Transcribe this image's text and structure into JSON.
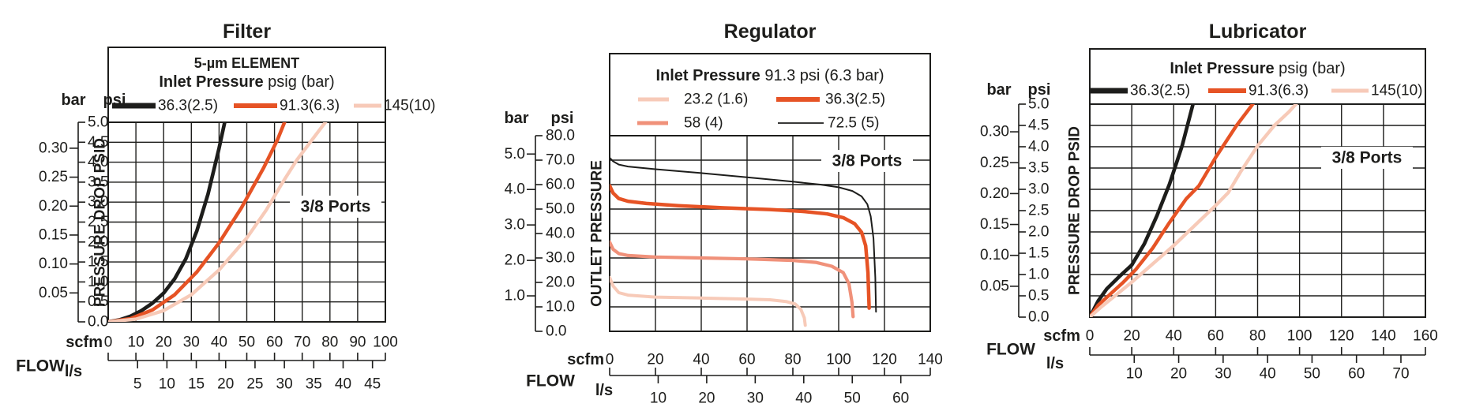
{
  "page": {
    "background": "#ffffff"
  },
  "colors": {
    "black": "#1d1d1b",
    "orange": "#e65325",
    "salmon": "#f0917a",
    "pink": "#f7cab8",
    "grid": "#1d1d1b",
    "text": "#1d1d1b"
  },
  "chart_data": [
    {
      "id": "filter",
      "type": "line",
      "title": "Filter",
      "ports_label": "3/8 Ports",
      "legend": {
        "lines": [
          [
            {
              "b": "5-µm ELEMENT",
              "r": ""
            }
          ],
          [
            {
              "b": "Inlet Pressure",
              "r": " psig (bar)"
            }
          ]
        ],
        "items": [
          {
            "label": "36.3(2.5)",
            "color": "black",
            "lw": 7
          },
          {
            "label": "91.3(6.3)",
            "color": "orange",
            "lw": 6
          },
          {
            "label": "145(10)",
            "color": "pink",
            "lw": 5
          }
        ]
      },
      "x_axis": {
        "label": "FLOW",
        "unit_top": "scfm",
        "unit_bottom": "l/s",
        "min": 0,
        "max": 100,
        "scfm_ticks": [
          0,
          10,
          20,
          30,
          40,
          50,
          60,
          70,
          80,
          90,
          100
        ],
        "ls_ticks": [
          5,
          10,
          15,
          20,
          25,
          30,
          35,
          40,
          45
        ],
        "ls_to_scfm": 2.1189,
        "grid": true
      },
      "y_axis": {
        "label": "PRESSURE DROP PSID",
        "unit_left": "bar",
        "unit_right": "psi",
        "min_psi": 0,
        "max_psi": 5,
        "psi_ticks": [
          "0.0",
          "0.5",
          "1.0",
          "1.5",
          "2.0",
          "2.5",
          "3.0",
          "3.5",
          "4.0",
          "4.5",
          "5.0"
        ],
        "bar_ticks": [
          "0.05",
          "0.10",
          "0.15",
          "0.20",
          "0.25",
          "0.30"
        ],
        "bar_to_psi": 14.5,
        "grid": true
      },
      "series": [
        {
          "name": "36.3(2.5)",
          "color": "black",
          "lw": 4.6,
          "points": [
            [
              0,
              0
            ],
            [
              4,
              0.05
            ],
            [
              8,
              0.14
            ],
            [
              12,
              0.28
            ],
            [
              16,
              0.47
            ],
            [
              20,
              0.72
            ],
            [
              24,
              1.08
            ],
            [
              28,
              1.58
            ],
            [
              32,
              2.28
            ],
            [
              36,
              3.2
            ],
            [
              40,
              4.35
            ],
            [
              42.5,
              5.15
            ]
          ]
        },
        {
          "name": "91.3(6.3)",
          "color": "orange",
          "lw": 4.5,
          "points": [
            [
              0,
              0
            ],
            [
              8,
              0.08
            ],
            [
              16,
              0.3
            ],
            [
              24,
              0.68
            ],
            [
              32,
              1.25
            ],
            [
              40,
              1.98
            ],
            [
              48,
              2.85
            ],
            [
              56,
              3.85
            ],
            [
              61,
              4.55
            ],
            [
              64.5,
              5.15
            ]
          ]
        },
        {
          "name": "145(10)",
          "color": "pink",
          "lw": 4.3,
          "points": [
            [
              0,
              0
            ],
            [
              10,
              0.07
            ],
            [
              20,
              0.28
            ],
            [
              30,
              0.68
            ],
            [
              40,
              1.3
            ],
            [
              50,
              2.1
            ],
            [
              57,
              2.8
            ],
            [
              63,
              3.5
            ],
            [
              68,
              4.05
            ],
            [
              74,
              4.6
            ],
            [
              80,
              5.15
            ]
          ]
        }
      ]
    },
    {
      "id": "regulator",
      "type": "line",
      "title": "Regulator",
      "ports_label": "3/8 Ports",
      "legend": {
        "lines": [
          [
            {
              "b": "Inlet Pressure",
              "r": " 91.3 psi (6.3 bar)"
            }
          ]
        ],
        "items": [
          {
            "label": "23.2 (1.6)",
            "color": "pink",
            "lw": 5
          },
          {
            "label": "36.3(2.5)",
            "color": "orange",
            "lw": 6
          },
          {
            "label": "58 (4)",
            "color": "salmon",
            "lw": 5
          },
          {
            "label": "72.5 (5)",
            "color": "black",
            "lw": 1.8
          }
        ]
      },
      "x_axis": {
        "label": "FLOW",
        "unit_top": "scfm",
        "unit_bottom": "l/s",
        "min": 0,
        "max": 140,
        "scfm_ticks": [
          0,
          20,
          40,
          60,
          80,
          100,
          120,
          140
        ],
        "ls_ticks": [
          10,
          20,
          30,
          40,
          50,
          60
        ],
        "ls_to_scfm": 2.1189,
        "grid": true
      },
      "y_axis": {
        "label": "OUTLET PRESSURE",
        "unit_left": "bar",
        "unit_right": "psi",
        "min_psi": 0,
        "max_psi": 80,
        "psi_ticks": [
          "0.0",
          "10.0",
          "20.0",
          "30.0",
          "40.0",
          "50.0",
          "60.0",
          "70.0",
          "80.0"
        ],
        "bar_ticks": [
          "1.0",
          "2.0",
          "3.0",
          "4.0",
          "5.0"
        ],
        "bar_to_psi": 14.5,
        "grid": true
      },
      "series": [
        {
          "name": "23.2 (1.6)",
          "color": "pink",
          "lw": 4,
          "points": [
            [
              0,
              22
            ],
            [
              1.5,
              18.5
            ],
            [
              4,
              15.8
            ],
            [
              8,
              14.8
            ],
            [
              20,
              14
            ],
            [
              40,
              13.6
            ],
            [
              60,
              13.2
            ],
            [
              70,
              12.9
            ],
            [
              77,
              12.2
            ],
            [
              81,
              11.2
            ],
            [
              83.5,
              9
            ],
            [
              85,
              5.5
            ],
            [
              85.4,
              2.5
            ]
          ]
        },
        {
          "name": "36.3(2.5)",
          "color": "orange",
          "lw": 4.5,
          "points": [
            [
              0,
              59.5
            ],
            [
              1.5,
              56.5
            ],
            [
              4,
              54.3
            ],
            [
              8,
              53.2
            ],
            [
              16,
              52.3
            ],
            [
              30,
              51.4
            ],
            [
              50,
              50.5
            ],
            [
              70,
              49.8
            ],
            [
              85,
              49
            ],
            [
              95,
              48
            ],
            [
              102,
              46.5
            ],
            [
              107,
              44
            ],
            [
              110,
              40.5
            ],
            [
              111.8,
              35
            ],
            [
              112.8,
              24
            ],
            [
              113.3,
              9.5
            ]
          ]
        },
        {
          "name": "58 (4)",
          "color": "salmon",
          "lw": 4.2,
          "points": [
            [
              0,
              36.5
            ],
            [
              1.5,
              33.5
            ],
            [
              4,
              31.8
            ],
            [
              8,
              31
            ],
            [
              20,
              30.4
            ],
            [
              40,
              30
            ],
            [
              60,
              29.6
            ],
            [
              80,
              29
            ],
            [
              90,
              28.2
            ],
            [
              97,
              26.6
            ],
            [
              102,
              24
            ],
            [
              104.5,
              19.5
            ],
            [
              105.8,
              12
            ],
            [
              106.3,
              6
            ]
          ]
        },
        {
          "name": "72.5 (5)",
          "color": "black",
          "lw": 2,
          "points": [
            [
              0,
              71
            ],
            [
              1.5,
              69.5
            ],
            [
              4,
              68.2
            ],
            [
              8,
              67.4
            ],
            [
              20,
              66.3
            ],
            [
              40,
              64.7
            ],
            [
              60,
              63
            ],
            [
              80,
              61.2
            ],
            [
              92,
              60
            ],
            [
              100,
              58.9
            ],
            [
              106,
              57.4
            ],
            [
              110,
              55.2
            ],
            [
              112.5,
              52
            ],
            [
              114,
              47
            ],
            [
              115.2,
              38
            ],
            [
              116,
              22
            ],
            [
              116.3,
              8
            ]
          ]
        }
      ]
    },
    {
      "id": "lubricator",
      "type": "line",
      "title": "Lubricator",
      "ports_label": "3/8 Ports",
      "legend": {
        "lines": [
          [
            {
              "b": "Inlet Pressure",
              "r": " psig (bar)"
            }
          ]
        ],
        "items": [
          {
            "label": "36.3(2.5)",
            "color": "black",
            "lw": 7
          },
          {
            "label": "91.3(6.3)",
            "color": "orange",
            "lw": 6
          },
          {
            "label": "145(10)",
            "color": "pink",
            "lw": 5
          }
        ]
      },
      "x_axis": {
        "label": "FLOW",
        "unit_top": "scfm",
        "unit_bottom": "l/s",
        "min": 0,
        "max": 160,
        "scfm_ticks": [
          0,
          20,
          40,
          60,
          80,
          100,
          120,
          140,
          160
        ],
        "ls_ticks": [
          10,
          20,
          30,
          40,
          50,
          60,
          70
        ],
        "ls_to_scfm": 2.1189,
        "grid": true
      },
      "y_axis": {
        "label": "PRESSURE DROP PSID",
        "unit_left": "bar",
        "unit_right": "psi",
        "min_psi": 0,
        "max_psi": 5,
        "psi_ticks": [
          "0.0",
          "0.5",
          "1.0",
          "1.5",
          "2.0",
          "2.5",
          "3.0",
          "3.5",
          "4.0",
          "4.5",
          "5.0"
        ],
        "bar_ticks": [
          "0.05",
          "0.10",
          "0.15",
          "0.20",
          "0.25",
          "0.30"
        ],
        "bar_to_psi": 14.5,
        "grid": true
      },
      "series": [
        {
          "name": "36.3(2.5)",
          "color": "black",
          "lw": 4.6,
          "points": [
            [
              0,
              0
            ],
            [
              4,
              0.38
            ],
            [
              8,
              0.66
            ],
            [
              14,
              0.95
            ],
            [
              20,
              1.22
            ],
            [
              26,
              1.72
            ],
            [
              32,
              2.38
            ],
            [
              38,
              3.12
            ],
            [
              44,
              4.02
            ],
            [
              50,
              5.15
            ]
          ]
        },
        {
          "name": "91.3(6.3)",
          "color": "orange",
          "lw": 4.4,
          "points": [
            [
              0,
              0
            ],
            [
              4,
              0.28
            ],
            [
              10,
              0.55
            ],
            [
              16,
              0.82
            ],
            [
              22,
              1.12
            ],
            [
              30,
              1.62
            ],
            [
              38,
              2.22
            ],
            [
              46,
              2.78
            ],
            [
              52,
              3.08
            ],
            [
              60,
              3.75
            ],
            [
              70,
              4.5
            ],
            [
              80,
              5.15
            ]
          ]
        },
        {
          "name": "145(10)",
          "color": "pink",
          "lw": 4.3,
          "points": [
            [
              0,
              0
            ],
            [
              5,
              0.22
            ],
            [
              12,
              0.5
            ],
            [
              20,
              0.82
            ],
            [
              30,
              1.25
            ],
            [
              40,
              1.68
            ],
            [
              50,
              2.15
            ],
            [
              60,
              2.62
            ],
            [
              66,
              2.92
            ],
            [
              72,
              3.42
            ],
            [
              80,
              4.02
            ],
            [
              88,
              4.5
            ],
            [
              95,
              4.82
            ],
            [
              101,
              5.15
            ]
          ]
        }
      ]
    }
  ]
}
